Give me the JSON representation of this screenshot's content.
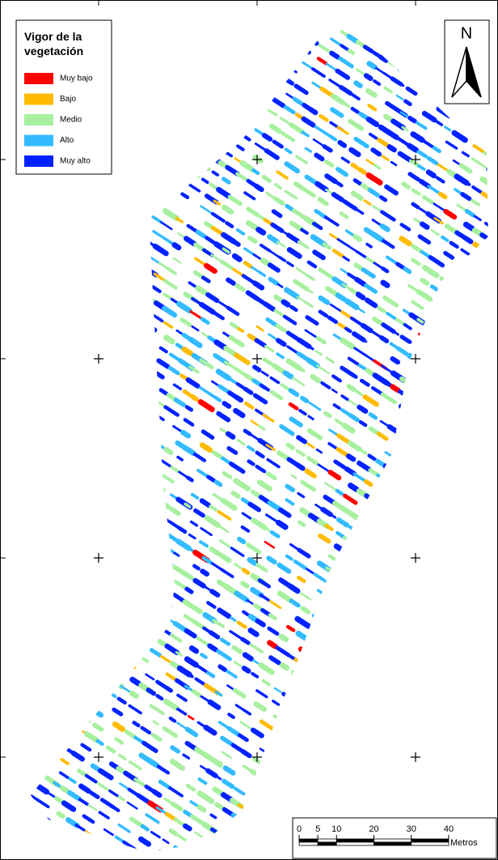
{
  "legend": {
    "title": "Vigor de la vegetación",
    "items": [
      {
        "label": "Muy bajo",
        "color": "#ff0000"
      },
      {
        "label": "Bajo",
        "color": "#ffbb00"
      },
      {
        "label": "Medio",
        "color": "#a8f0a0"
      },
      {
        "label": "Alto",
        "color": "#33bbff"
      },
      {
        "label": "Muy alto",
        "color": "#0022ff"
      }
    ]
  },
  "north": {
    "label": "N"
  },
  "scale_bar": {
    "ticks": [
      0,
      5,
      10,
      20,
      30,
      40
    ],
    "unit": "Metros"
  }
}
